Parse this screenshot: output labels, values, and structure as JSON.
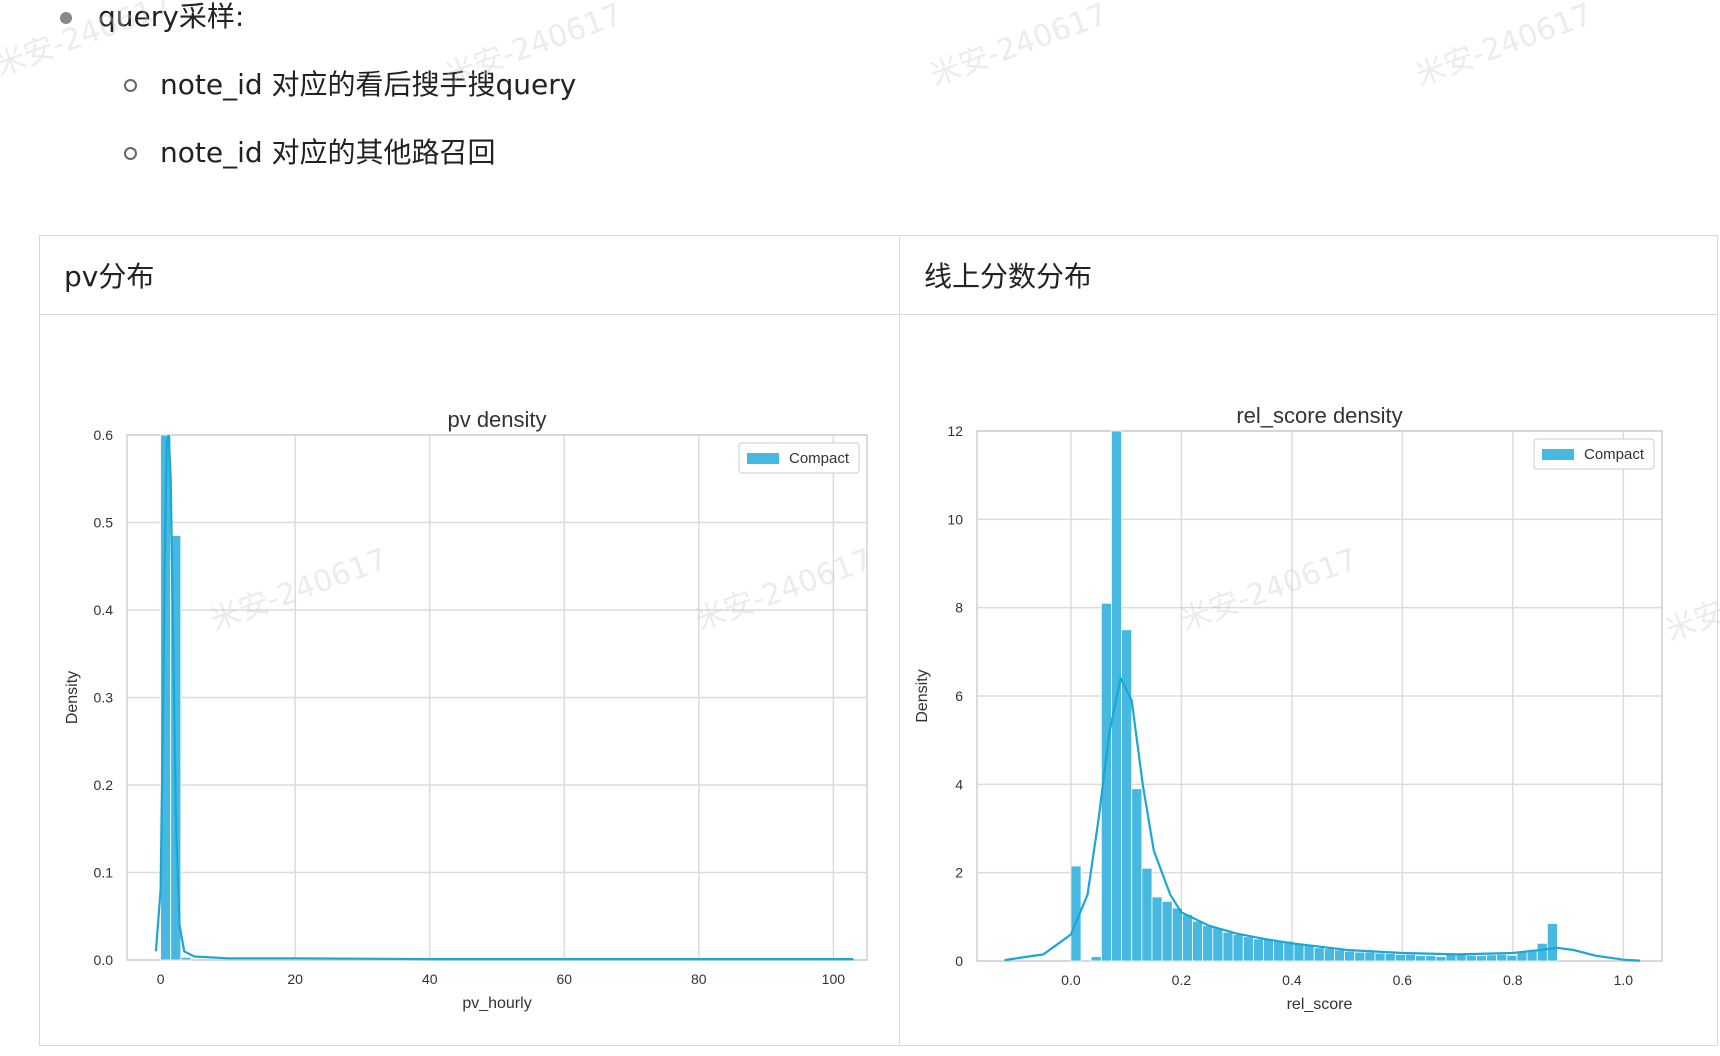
{
  "bullets": {
    "main": "query采样:",
    "subs": [
      "note_id 对应的看后搜手搜query",
      "note_id 对应的其他路召回"
    ]
  },
  "table": {
    "headers": [
      "pv分布",
      "线上分数分布"
    ]
  },
  "watermark": "米安-240617",
  "colors": {
    "accent": "#1aa7d6",
    "bar": "#47b9e0",
    "grid": "#dcdcdc"
  },
  "chart_data": [
    {
      "type": "bar",
      "title": "pv density",
      "xlabel": "pv_hourly",
      "ylabel": "Density",
      "xlim": [
        -5,
        105
      ],
      "ylim": [
        0,
        0.6
      ],
      "xticks": [
        0,
        20,
        40,
        60,
        80,
        100
      ],
      "yticks": [
        0.0,
        0.1,
        0.2,
        0.3,
        0.4,
        0.5,
        0.6
      ],
      "legend": {
        "label": "Compact",
        "position": "top-right"
      },
      "grid": true,
      "bins": [
        {
          "x0": 0,
          "x1": 1.5,
          "y": 0.6
        },
        {
          "x0": 1.5,
          "x1": 3,
          "y": 0.485
        },
        {
          "x0": 3,
          "x1": 4.5,
          "y": 0.003
        }
      ],
      "kde": [
        [
          -0.7,
          0.01
        ],
        [
          0,
          0.08
        ],
        [
          0.3,
          0.25
        ],
        [
          0.6,
          0.45
        ],
        [
          0.9,
          0.59
        ],
        [
          1.2,
          0.6
        ],
        [
          1.5,
          0.55
        ],
        [
          1.9,
          0.35
        ],
        [
          2.3,
          0.15
        ],
        [
          2.8,
          0.04
        ],
        [
          3.5,
          0.01
        ],
        [
          5,
          0.004
        ],
        [
          10,
          0.002
        ],
        [
          20,
          0.002
        ],
        [
          40,
          0.001
        ],
        [
          60,
          0.001
        ],
        [
          80,
          0.001
        ],
        [
          100,
          0.001
        ],
        [
          103,
          0.001
        ]
      ]
    },
    {
      "type": "bar",
      "title": "rel_score density",
      "xlabel": "rel_score",
      "ylabel": "Density",
      "xlim": [
        -0.17,
        1.07
      ],
      "ylim": [
        0,
        12
      ],
      "xticks": [
        0.0,
        0.2,
        0.4,
        0.6,
        0.8,
        1.0
      ],
      "yticks": [
        0,
        2,
        4,
        6,
        8,
        10,
        12
      ],
      "legend": {
        "label": "Compact",
        "position": "top-right"
      },
      "grid": true,
      "bin_start": 0.0,
      "bin_width": 0.01835,
      "bin_values": [
        2.15,
        0,
        0.1,
        8.1,
        12,
        7.5,
        3.9,
        2.1,
        1.45,
        1.35,
        1.2,
        1.05,
        0.9,
        0.8,
        0.75,
        0.65,
        0.6,
        0.55,
        0.5,
        0.5,
        0.45,
        0.45,
        0.4,
        0.35,
        0.3,
        0.28,
        0.25,
        0.22,
        0.2,
        0.2,
        0.18,
        0.17,
        0.15,
        0.15,
        0.12,
        0.12,
        0.1,
        0.15,
        0.15,
        0.13,
        0.12,
        0.14,
        0.15,
        0.13,
        0.2,
        0.22,
        0.4,
        0.85
      ],
      "kde": [
        [
          -0.12,
          0.02
        ],
        [
          -0.05,
          0.15
        ],
        [
          0,
          0.6
        ],
        [
          0.03,
          1.5
        ],
        [
          0.05,
          3.2
        ],
        [
          0.07,
          5.2
        ],
        [
          0.09,
          6.4
        ],
        [
          0.11,
          5.9
        ],
        [
          0.13,
          4.0
        ],
        [
          0.15,
          2.5
        ],
        [
          0.18,
          1.5
        ],
        [
          0.2,
          1.1
        ],
        [
          0.25,
          0.8
        ],
        [
          0.3,
          0.62
        ],
        [
          0.35,
          0.5
        ],
        [
          0.4,
          0.4
        ],
        [
          0.5,
          0.25
        ],
        [
          0.6,
          0.18
        ],
        [
          0.7,
          0.15
        ],
        [
          0.8,
          0.18
        ],
        [
          0.85,
          0.25
        ],
        [
          0.88,
          0.3
        ],
        [
          0.91,
          0.25
        ],
        [
          0.95,
          0.12
        ],
        [
          1.0,
          0.03
        ],
        [
          1.03,
          0.01
        ]
      ]
    }
  ]
}
